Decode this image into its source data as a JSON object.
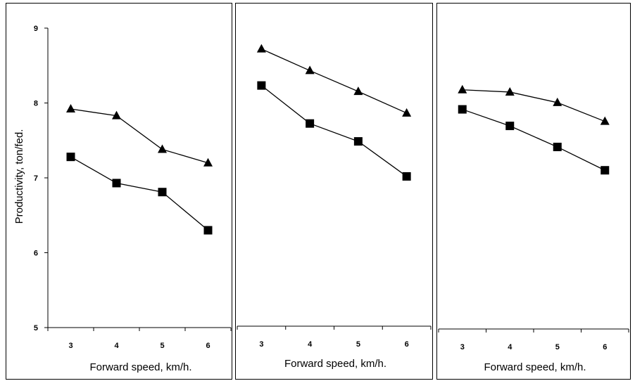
{
  "chart_data": [
    {
      "type": "line",
      "categories": [
        "3",
        "4",
        "5",
        "6"
      ],
      "x": [
        3,
        4,
        5,
        6
      ],
      "ylim": [
        5,
        9
      ],
      "yticks": [
        "5",
        "6",
        "7",
        "8",
        "9"
      ],
      "ylabel": "Productivity, ton/fed.",
      "xlabel": "Forward speed, km/h.",
      "grid": false,
      "series": [
        {
          "marker": "triangle",
          "values": [
            7.92,
            7.83,
            7.38,
            7.2
          ]
        },
        {
          "marker": "square",
          "values": [
            7.28,
            6.93,
            6.81,
            6.3
          ]
        }
      ]
    },
    {
      "type": "line",
      "categories": [
        "3",
        "4",
        "5",
        "6"
      ],
      "x": [
        3,
        4,
        5,
        6
      ],
      "ylim": [
        5,
        9
      ],
      "ylabel": "",
      "xlabel": "Forward speed, km/h.",
      "grid": false,
      "series": [
        {
          "marker": "triangle",
          "values": [
            8.72,
            8.43,
            8.15,
            7.86
          ]
        },
        {
          "marker": "square",
          "values": [
            8.23,
            7.72,
            7.48,
            7.01
          ]
        }
      ]
    },
    {
      "type": "line",
      "categories": [
        "3",
        "4",
        "5",
        "6"
      ],
      "x": [
        3,
        4,
        5,
        6
      ],
      "ylim": [
        5,
        9
      ],
      "ylabel": "",
      "xlabel": "Forward speed, km/h.",
      "grid": false,
      "series": [
        {
          "marker": "triangle",
          "values": [
            8.18,
            8.15,
            8.01,
            7.76
          ]
        },
        {
          "marker": "square",
          "values": [
            7.92,
            7.7,
            7.42,
            7.11
          ]
        }
      ]
    }
  ],
  "colors": {
    "line": "#000000",
    "marker": "#000000",
    "frame": "#000000",
    "background": "#ffffff"
  }
}
